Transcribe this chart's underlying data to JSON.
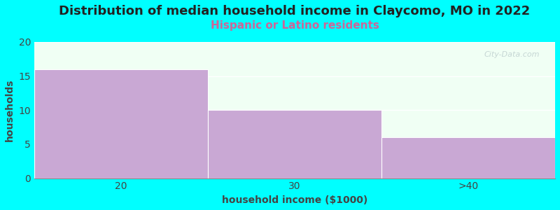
{
  "title": "Distribution of median household income in Claycomo, MO in 2022",
  "subtitle": "Hispanic or Latino residents",
  "categories": [
    "20",
    "30",
    ">40"
  ],
  "values": [
    16,
    10,
    6
  ],
  "bar_color": "#C9A8D4",
  "bar_edge_color": "#C9A8D4",
  "background_color": "#00FFFF",
  "plot_bg_color": "#F0FFF4",
  "xlabel": "household income ($1000)",
  "ylabel": "households",
  "ylim": [
    0,
    20
  ],
  "yticks": [
    0,
    5,
    10,
    15,
    20
  ],
  "title_fontsize": 13,
  "subtitle_fontsize": 11,
  "subtitle_color": "#CC6699",
  "axis_label_fontsize": 10,
  "watermark_text": "City-Data.com",
  "watermark_color": "#BBCCCC"
}
